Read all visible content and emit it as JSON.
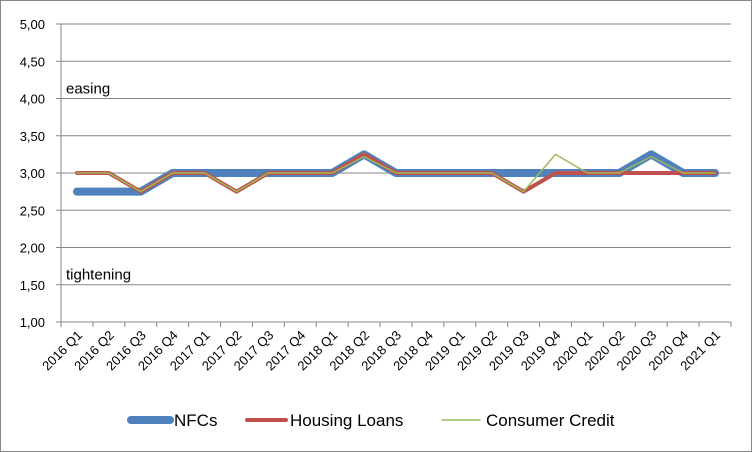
{
  "chart_data": {
    "type": "line",
    "categories": [
      "2016 Q1",
      "2016 Q2",
      "2016 Q3",
      "2016 Q4",
      "2017 Q1",
      "2017 Q2",
      "2017 Q3",
      "2017 Q4",
      "2018 Q1",
      "2018 Q2",
      "2018 Q3",
      "2018 Q4",
      "2019 Q1",
      "2019 Q2",
      "2019 Q3",
      "2019 Q4",
      "2020 Q1",
      "2020 Q2",
      "2020 Q3",
      "2020 Q4",
      "2021 Q1"
    ],
    "ylim": [
      1.0,
      5.0
    ],
    "yticks": [
      "1,00",
      "1,50",
      "2,00",
      "2,50",
      "3,00",
      "3,50",
      "4,00",
      "4,50",
      "5,00"
    ],
    "grid": true,
    "legend_position": "bottom",
    "annotations": [
      {
        "text": "easing",
        "y": 4.15
      },
      {
        "text": "tightening",
        "y": 1.65
      }
    ],
    "series": [
      {
        "name": "NFCs",
        "color": "#4F81BD",
        "style": "thick",
        "values": [
          2.75,
          2.75,
          2.75,
          3.0,
          3.0,
          3.0,
          3.0,
          3.0,
          3.0,
          3.25,
          3.0,
          3.0,
          3.0,
          3.0,
          3.0,
          3.0,
          3.0,
          3.0,
          3.25,
          3.0,
          3.0
        ]
      },
      {
        "name": "Housing Loans",
        "color": "#C0504D",
        "style": "medium",
        "values": [
          3.0,
          3.0,
          2.75,
          3.0,
          3.0,
          2.75,
          3.0,
          3.0,
          3.0,
          3.25,
          3.0,
          3.0,
          3.0,
          3.0,
          2.75,
          3.0,
          3.0,
          3.0,
          3.0,
          3.0,
          3.0
        ]
      },
      {
        "name": "Consumer Credit",
        "color": "#9BBB59",
        "style": "thin",
        "values": [
          3.0,
          3.0,
          2.75,
          3.0,
          3.0,
          2.75,
          3.0,
          3.0,
          3.0,
          3.22,
          3.0,
          3.0,
          3.0,
          3.0,
          2.75,
          3.25,
          3.0,
          3.0,
          3.22,
          3.0,
          3.0
        ]
      }
    ]
  }
}
